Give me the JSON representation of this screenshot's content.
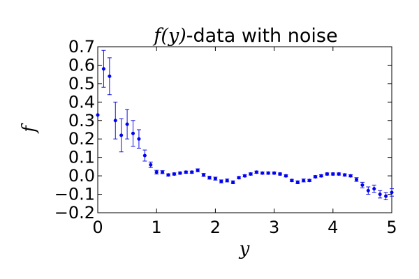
{
  "colors": {
    "series": "#0000ff",
    "errorbar": "#1010e6",
    "axes": "#000000",
    "background": "#ffffff"
  },
  "chart_data": {
    "type": "scatter",
    "title_math": "f(y)",
    "title_text": "-data with noise",
    "xlabel": "y",
    "ylabel": "f",
    "xlim": [
      0,
      5
    ],
    "ylim": [
      -0.2,
      0.7
    ],
    "xticks": [
      0,
      1,
      2,
      3,
      4,
      5
    ],
    "xtick_labels": [
      "0",
      "1",
      "2",
      "3",
      "4",
      "5"
    ],
    "yticks": [
      -0.2,
      -0.1,
      0.0,
      0.1,
      0.2,
      0.3,
      0.4,
      0.5,
      0.6,
      0.7
    ],
    "ytick_labels": [
      "−0.2",
      "−0.1",
      "0.0",
      "0.1",
      "0.2",
      "0.3",
      "0.4",
      "0.5",
      "0.6",
      "0.7"
    ],
    "grid": false,
    "series": [
      {
        "marker": "point",
        "errorbars": true,
        "x": [
          0.0,
          0.1,
          0.2,
          0.3,
          0.4,
          0.5,
          0.6,
          0.7,
          0.8,
          0.9,
          1.0,
          1.1,
          1.2,
          1.3,
          1.4,
          1.5,
          1.6,
          1.7,
          1.8,
          1.9,
          2.0,
          2.1,
          2.2,
          2.3,
          2.4,
          2.5,
          2.6,
          2.7,
          2.8,
          2.9,
          3.0,
          3.1,
          3.2,
          3.3,
          3.4,
          3.5,
          3.6,
          3.7,
          3.8,
          3.9,
          4.0,
          4.1,
          4.2,
          4.3,
          4.4,
          4.5,
          4.6,
          4.7,
          4.8,
          4.9,
          5.0
        ],
        "y": [
          0.33,
          0.58,
          0.54,
          0.3,
          0.22,
          0.28,
          0.23,
          0.2,
          0.11,
          0.06,
          0.02,
          0.02,
          0.005,
          0.01,
          0.015,
          0.02,
          0.02,
          0.03,
          0.005,
          -0.01,
          -0.015,
          -0.03,
          -0.025,
          -0.035,
          -0.01,
          0.0,
          0.01,
          0.02,
          0.015,
          0.015,
          0.015,
          0.01,
          0.0,
          -0.025,
          -0.035,
          -0.025,
          -0.025,
          -0.005,
          0.0,
          0.01,
          0.01,
          0.01,
          0.005,
          0.0,
          -0.02,
          -0.05,
          -0.08,
          -0.07,
          -0.1,
          -0.11,
          -0.09
        ],
        "yerr": [
          0.0,
          0.1,
          0.1,
          0.1,
          0.09,
          0.08,
          0.07,
          0.05,
          0.03,
          0.015,
          0.01,
          0.008,
          0.006,
          0.006,
          0.006,
          0.006,
          0.006,
          0.008,
          0.008,
          0.008,
          0.008,
          0.008,
          0.008,
          0.008,
          0.006,
          0.006,
          0.006,
          0.006,
          0.006,
          0.006,
          0.006,
          0.006,
          0.006,
          0.006,
          0.008,
          0.008,
          0.006,
          0.006,
          0.006,
          0.006,
          0.006,
          0.006,
          0.006,
          0.006,
          0.01,
          0.015,
          0.02,
          0.02,
          0.02,
          0.02,
          0.02
        ]
      }
    ]
  }
}
